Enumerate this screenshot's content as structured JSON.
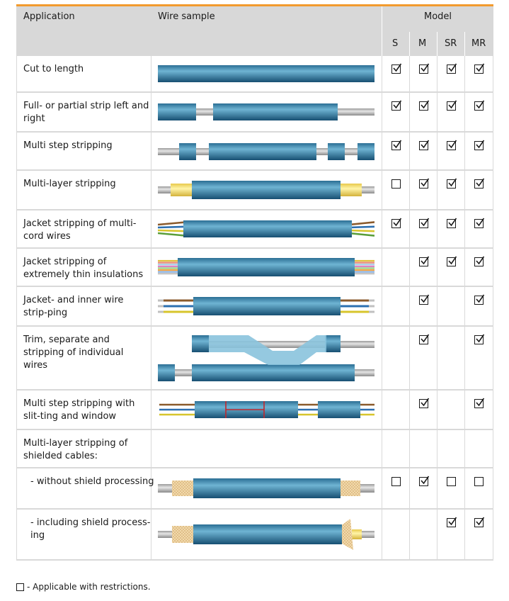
{
  "header": {
    "application": "Application",
    "wire_sample": "Wire sample",
    "model": "Model",
    "models": [
      "S",
      "M",
      "SR",
      "MR"
    ]
  },
  "rows": [
    {
      "label": "Cut to length",
      "checks": [
        "checked",
        "checked",
        "checked",
        "checked"
      ],
      "wire": "cut"
    },
    {
      "label": "Full- or partial strip left and right",
      "checks": [
        "checked",
        "checked",
        "checked",
        "checked"
      ],
      "wire": "fullstrip"
    },
    {
      "label": "Multi step stripping",
      "checks": [
        "checked",
        "checked",
        "checked",
        "checked"
      ],
      "wire": "multistep"
    },
    {
      "label": "Multi-layer stripping",
      "checks": [
        "restricted",
        "checked",
        "checked",
        "checked"
      ],
      "wire": "multilayer"
    },
    {
      "label": "Jacket stripping of multi-cord wires",
      "checks": [
        "checked",
        "checked",
        "checked",
        "checked"
      ],
      "wire": "multicord"
    },
    {
      "label": "Jacket stripping of extremely thin insulations",
      "checks": [
        "none",
        "checked",
        "checked",
        "checked"
      ],
      "wire": "thin"
    },
    {
      "label": "Jacket- and inner wire strip-ping",
      "checks": [
        "none",
        "checked",
        "none",
        "checked"
      ],
      "wire": "inner"
    },
    {
      "label": "Trim, separate and stripping of individual wires",
      "checks": [
        "none",
        "checked",
        "none",
        "checked"
      ],
      "wire": "trim"
    },
    {
      "label": "Multi step stripping with slit-ting and window",
      "checks": [
        "none",
        "checked",
        "none",
        "checked"
      ],
      "wire": "slit"
    },
    {
      "label": "Multi-layer stripping of shielded cables:",
      "checks": [
        "none",
        "none",
        "none",
        "none"
      ],
      "wire": "none"
    },
    {
      "label": "- without shield processing",
      "checks": [
        "restricted",
        "checked",
        "restricted",
        "restricted"
      ],
      "wire": "shield1",
      "indent": true
    },
    {
      "label": "- including shield process-ing",
      "checks": [
        "none",
        "none",
        "checked",
        "checked"
      ],
      "wire": "shield2",
      "indent": true
    }
  ],
  "legend": "- Applicable with restrictions."
}
